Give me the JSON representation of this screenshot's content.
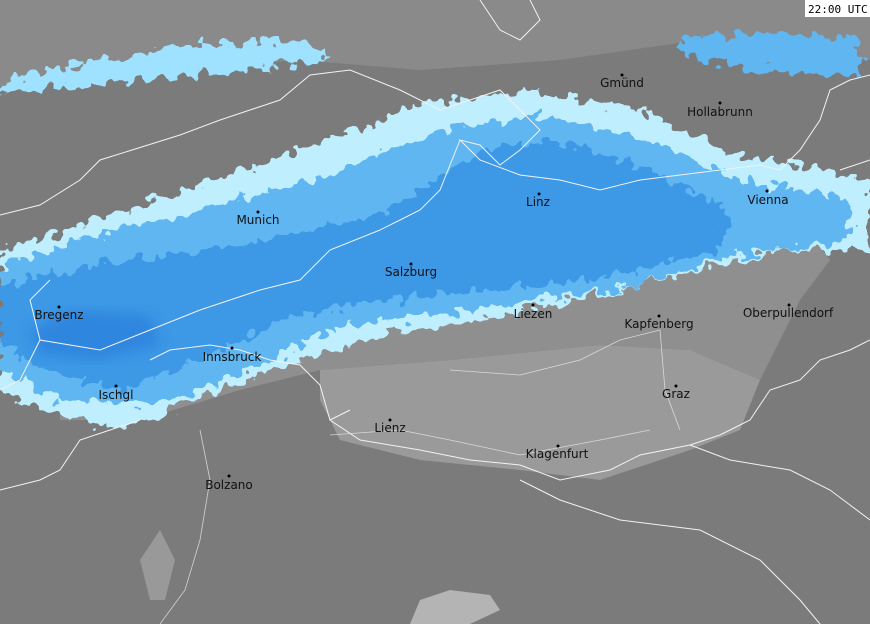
{
  "timestamp": "22:00 UTC",
  "cities": [
    "Gmünd",
    "Hollabrunn",
    "Linz",
    "Vienna",
    "Munich",
    "Salzburg",
    "Liezen",
    "Kapfenberg",
    "Oberpullendorf",
    "Bregenz",
    "Innsbruck",
    "Ischgl",
    "Graz",
    "Lienz",
    "Klagenfurt",
    "Bolzano"
  ]
}
